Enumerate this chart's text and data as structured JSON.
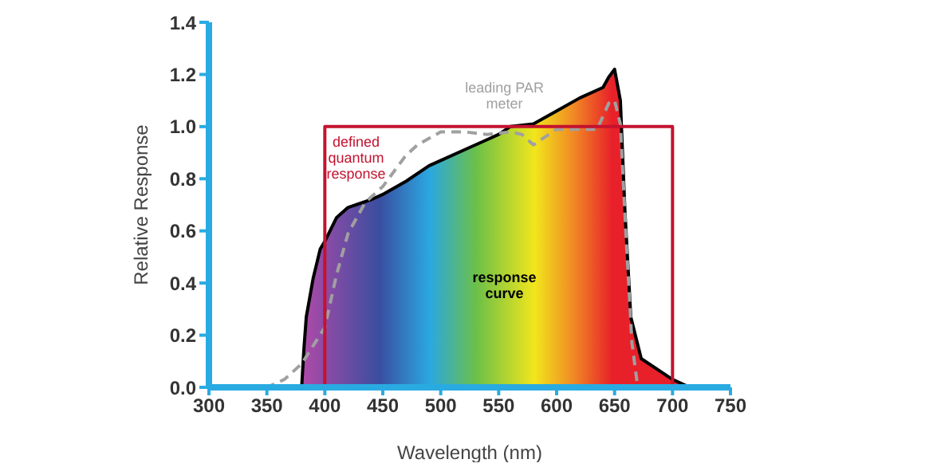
{
  "chart_data": {
    "type": "line",
    "xlabel": "Wavelength (nm)",
    "ylabel": "Relative Response",
    "xlim": [
      300,
      750
    ],
    "xticks": [
      300,
      350,
      400,
      450,
      500,
      550,
      600,
      650,
      700,
      750
    ],
    "ylim": [
      0,
      1.4
    ],
    "yticks": [
      {
        "value": 0,
        "label": "0.0"
      },
      {
        "value": 0.2,
        "label": "0.2"
      },
      {
        "value": 0.4,
        "label": "0.4"
      },
      {
        "value": 0.6,
        "label": "0.6"
      },
      {
        "value": 0.8,
        "label": "0.8"
      },
      {
        "value": 1,
        "label": "1.0"
      },
      {
        "value": 1.2,
        "label": "1.2"
      },
      {
        "value": 1.4,
        "label": "1.4"
      }
    ],
    "marker": "none",
    "series": [
      {
        "name": "response curve",
        "type": "area",
        "color": "#000000",
        "line_style": "solid",
        "x": [
          380,
          382,
          384,
          390,
          396,
          400,
          410,
          420,
          440,
          450,
          470,
          490,
          500,
          520,
          540,
          550,
          560,
          580,
          600,
          620,
          640,
          645,
          650,
          655,
          659,
          664,
          673,
          700,
          715
        ],
        "values": [
          0,
          0.15,
          0.27,
          0.42,
          0.53,
          0.56,
          0.65,
          0.69,
          0.72,
          0.74,
          0.79,
          0.85,
          0.87,
          0.91,
          0.95,
          0.97,
          1.0,
          1.01,
          1.06,
          1.11,
          1.15,
          1.19,
          1.22,
          1.1,
          0.67,
          0.27,
          0.11,
          0.03,
          0
        ]
      },
      {
        "name": "leading PAR meter",
        "color": "#a0a0a0",
        "line_style": "dashed",
        "x": [
          335,
          350,
          365,
          380,
          400,
          410,
          420,
          435,
          450,
          460,
          470,
          480,
          500,
          520,
          540,
          560,
          570,
          580,
          590,
          600,
          620,
          635,
          645,
          650,
          655,
          660,
          665,
          670
        ],
        "values": [
          0,
          0,
          0.03,
          0.09,
          0.23,
          0.43,
          0.59,
          0.71,
          0.77,
          0.83,
          0.89,
          0.93,
          0.98,
          0.98,
          0.97,
          0.98,
          0.97,
          0.93,
          0.96,
          0.99,
          0.99,
          0.99,
          1.09,
          1.1,
          1.01,
          0.57,
          0.17,
          0
        ]
      },
      {
        "name": "defined quantum response",
        "color": "#c4122f",
        "line_style": "solid",
        "x": [
          400,
          400,
          700,
          700
        ],
        "values": [
          0,
          1,
          1,
          0
        ]
      }
    ]
  }
}
